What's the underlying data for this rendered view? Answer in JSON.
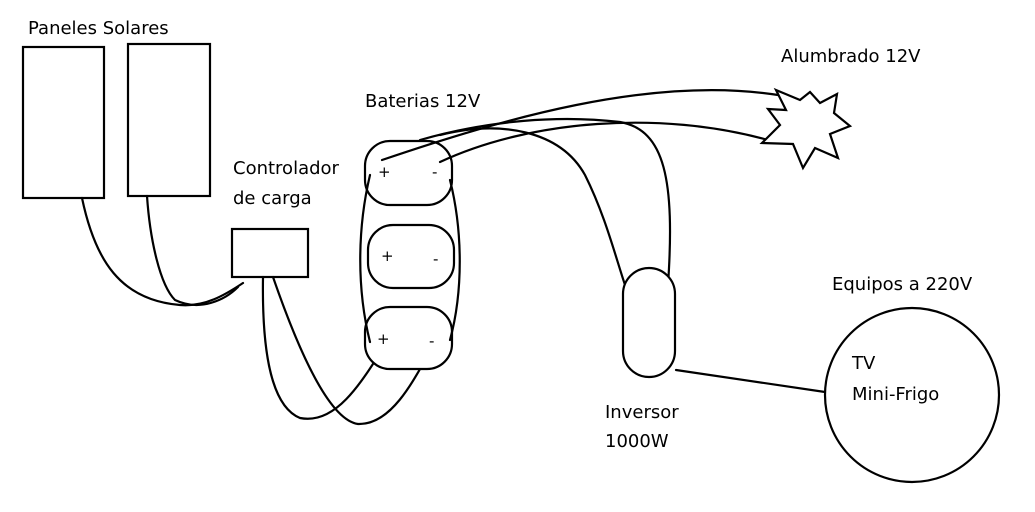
{
  "labels": {
    "panels": "Paneles Solares",
    "controller_line1": "Controlador",
    "controller_line2": "de carga",
    "batteries": "Baterias 12V",
    "lighting": "Alumbrado 12V",
    "equipment": "Equipos a 220V",
    "inverter_line1": "Inversor",
    "inverter_line2": "1000W",
    "appliance_line1": "TV",
    "appliance_line2": "Mini-Frigo"
  },
  "terminals": {
    "plus": "+",
    "minus": "-"
  }
}
